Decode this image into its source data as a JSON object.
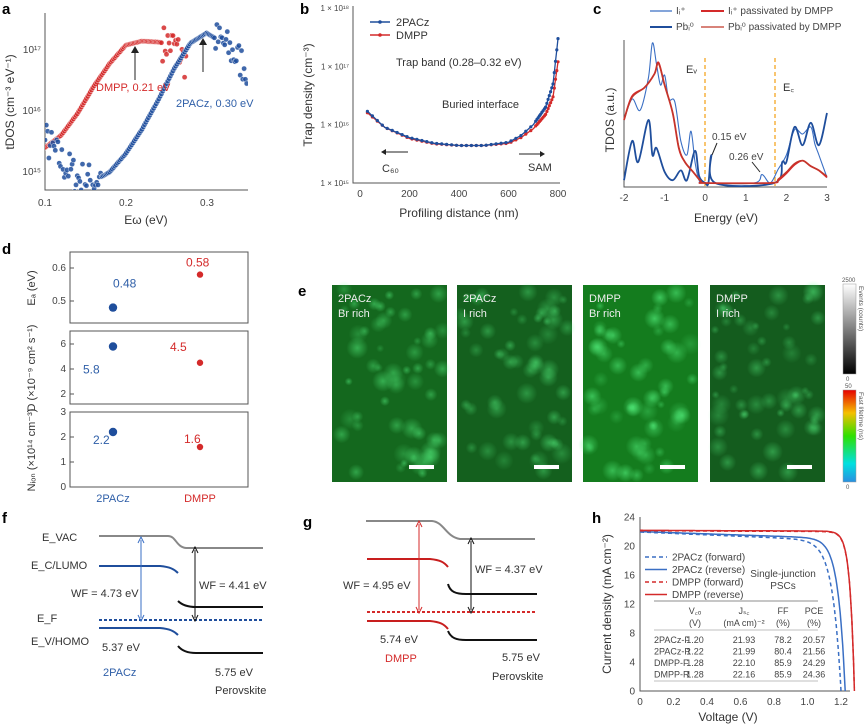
{
  "panel_letters": [
    "a",
    "b",
    "c",
    "d",
    "e",
    "f",
    "g",
    "h"
  ],
  "colors": {
    "blue": "#1f4e9c",
    "light_blue": "#3a6fc4",
    "red": "#d42a2a",
    "orange": "#f5a623",
    "gray": "#888888",
    "black": "#111111"
  },
  "chart_data": [
    {
      "panel": "a",
      "type": "scatter",
      "xlabel": "Eω (eV)",
      "ylabel": "tDOS (cm⁻³ eV⁻¹)",
      "xlim": [
        0.1,
        0.35
      ],
      "ylim": [
        500000000000000.0,
        4e+17
      ],
      "yscale": "log",
      "xticks": [
        "0.1",
        "0.2",
        "0.3"
      ],
      "yticks": [
        "10¹⁵",
        "10¹⁶",
        "10¹⁷"
      ],
      "series": [
        {
          "name": "DMPP",
          "color": "#d42a2a",
          "x": [
            0.1,
            0.12,
            0.14,
            0.16,
            0.18,
            0.2,
            0.22,
            0.24,
            0.26,
            0.275
          ],
          "y": [
            2500000000000000.0,
            4000000000000000.0,
            9000000000000000.0,
            2.5e+16,
            6e+16,
            1.2e+17,
            1.4e+17,
            1.35e+17,
            1.2e+17,
            6e+16
          ]
        },
        {
          "name": "2PACz",
          "color": "#1f4e9c",
          "x": [
            0.1,
            0.12,
            0.14,
            0.16,
            0.18,
            0.2,
            0.22,
            0.24,
            0.26,
            0.28,
            0.3,
            0.32,
            0.34,
            0.35
          ],
          "y": [
            3500000000000000.0,
            1500000000000000.0,
            800000000000000.0,
            700000000000000.0,
            1000000000000000.0,
            2000000000000000.0,
            5000000000000000.0,
            1.5e+16,
            5e+16,
            1.3e+17,
            1.9e+17,
            1.3e+17,
            7e+16,
            5e+16
          ]
        }
      ],
      "annotations": [
        {
          "text": "DMPP, 0.21 eV",
          "x": 0.21
        },
        {
          "text": "2PACz, 0.30 eV",
          "x": 0.3
        }
      ]
    },
    {
      "panel": "b",
      "type": "line",
      "xlabel": "Profiling distance (nm)",
      "ylabel": "Trap density (cm⁻³)",
      "xlim": [
        0,
        800
      ],
      "ylim": [
        1000000000000000.0,
        1e+18
      ],
      "yscale": "log",
      "xticks": [
        "0",
        "200",
        "400",
        "600",
        "800"
      ],
      "yticks": [
        "1 × 10¹⁵",
        "1 × 10¹⁶",
        "1 × 10¹⁷",
        "1 × 10¹⁸"
      ],
      "x": [
        30,
        100,
        200,
        300,
        400,
        500,
        600,
        650,
        700,
        750,
        780,
        800
      ],
      "series": [
        {
          "name": "2PACz",
          "color": "#1f4e9c",
          "values": [
            1.7e+16,
            9000000000000000.0,
            6000000000000000.0,
            4800000000000000.0,
            4400000000000000.0,
            4400000000000000.0,
            5000000000000000.0,
            6500000000000000.0,
            1e+16,
            2e+16,
            5e+16,
            3e+17
          ]
        },
        {
          "name": "DMPP",
          "color": "#d42a2a",
          "values": [
            1.6e+16,
            9000000000000000.0,
            5800000000000000.0,
            4700000000000000.0,
            4400000000000000.0,
            4400000000000000.0,
            4800000000000000.0,
            6000000000000000.0,
            8500000000000000.0,
            1.5e+16,
            3e+16,
            1.2e+17
          ]
        }
      ],
      "annotations": [
        "Trap band (0.28–0.32 eV)",
        "Buried interface",
        "C₆₀",
        "SAM"
      ]
    },
    {
      "panel": "c",
      "type": "line",
      "xlabel": "Energy (eV)",
      "ylabel": "TDOS (a.u.)",
      "xlim": [
        -2,
        3
      ],
      "xticks": [
        "-2",
        "-1",
        "0",
        "1",
        "2",
        "3"
      ],
      "markers": [
        {
          "label": "Eᵥ",
          "x": 0
        },
        {
          "label": "E꜀",
          "x": 1.72
        }
      ],
      "annotations": [
        "0.15 eV",
        "0.26 eV"
      ],
      "series": [
        {
          "name": "Iᵢ⁺",
          "color": "#3a6fc4",
          "pts": [
            [
              -2,
              0.45
            ],
            [
              -1.8,
              0.6
            ],
            [
              -1.6,
              0.52
            ],
            [
              -1.4,
              0.75
            ],
            [
              -1.3,
              1.0
            ],
            [
              -1.2,
              0.85
            ],
            [
              -1.1,
              0.7
            ],
            [
              -1.0,
              0.77
            ],
            [
              -0.9,
              0.6
            ],
            [
              -0.75,
              0.58
            ],
            [
              -0.6,
              0.3
            ],
            [
              -0.45,
              0.2
            ],
            [
              -0.35,
              0.37
            ],
            [
              -0.25,
              0.15
            ],
            [
              -0.15,
              0.02
            ],
            [
              0,
              0
            ],
            [
              1.2,
              0
            ],
            [
              1.4,
              0.06
            ],
            [
              1.6,
              0
            ],
            [
              1.8,
              0.1
            ],
            [
              2.0,
              0.2
            ],
            [
              2.2,
              0.38
            ],
            [
              2.4,
              0.35
            ],
            [
              2.6,
              0.4
            ],
            [
              2.7,
              0.28
            ],
            [
              2.8,
              0.2
            ],
            [
              3.0,
              0.04
            ]
          ]
        },
        {
          "name": "Pbᵢ⁰",
          "color": "#1f4e9c",
          "pts": [
            [
              -2,
              0.02
            ],
            [
              -1.8,
              0.3
            ],
            [
              -1.65,
              0.15
            ],
            [
              -1.4,
              0.45
            ],
            [
              -1.3,
              0.2
            ],
            [
              -1.2,
              0.25
            ],
            [
              -1.0,
              0.08
            ],
            [
              -0.8,
              0.02
            ],
            [
              -0.6,
              0.09
            ],
            [
              -0.45,
              0.02
            ],
            [
              -0.25,
              0.23
            ],
            [
              -0.15,
              0.05
            ],
            [
              0,
              0
            ],
            [
              0.08,
              0
            ],
            [
              0.15,
              0.2
            ],
            [
              0.25,
              0
            ],
            [
              1.7,
              0
            ],
            [
              1.9,
              0.15
            ],
            [
              2.0,
              0.15
            ],
            [
              2.2,
              0.4
            ],
            [
              2.4,
              0.27
            ],
            [
              2.6,
              0.43
            ],
            [
              2.8,
              0.27
            ],
            [
              3.0,
              0.5
            ]
          ]
        },
        {
          "name": "Iᵢ⁺ passivated by DMPP",
          "color": "#d42a2a",
          "pts": [
            [
              -2,
              0.45
            ],
            [
              -1.8,
              0.62
            ],
            [
              -1.5,
              0.68
            ],
            [
              -1.25,
              0.78
            ],
            [
              -1.15,
              0.86
            ],
            [
              -1.0,
              0.7
            ],
            [
              -0.8,
              0.5
            ],
            [
              -0.65,
              0.25
            ],
            [
              -0.5,
              0.15
            ],
            [
              -0.3,
              0.08
            ],
            [
              -0.1,
              0.01
            ],
            [
              0,
              0
            ],
            [
              1.6,
              0
            ],
            [
              1.8,
              0.02
            ],
            [
              2.0,
              0.07
            ],
            [
              2.2,
              0.13
            ],
            [
              2.4,
              0.16
            ],
            [
              2.6,
              0.12
            ],
            [
              2.8,
              0.09
            ],
            [
              3.0,
              0.04
            ]
          ]
        },
        {
          "name": "Pbᵢ⁰ passivated by DMPP",
          "color": "#c0392b",
          "pts": [
            [
              -2,
              0.45
            ],
            [
              -1.8,
              0.61
            ],
            [
              -1.5,
              0.68
            ],
            [
              -1.25,
              0.78
            ],
            [
              -1.15,
              0.85
            ],
            [
              -1.0,
              0.7
            ],
            [
              -0.8,
              0.5
            ],
            [
              -0.65,
              0.26
            ],
            [
              -0.5,
              0.15
            ],
            [
              -0.3,
              0.08
            ],
            [
              -0.1,
              0.01
            ],
            [
              0,
              0
            ],
            [
              1.6,
              0
            ],
            [
              1.8,
              0.03
            ],
            [
              2.0,
              0.08
            ],
            [
              2.2,
              0.14
            ],
            [
              2.4,
              0.16
            ],
            [
              2.6,
              0.12
            ],
            [
              2.8,
              0.09
            ],
            [
              3.0,
              0.05
            ]
          ]
        }
      ]
    },
    {
      "panel": "d",
      "type": "scatter",
      "categories": [
        "2PACz",
        "DMPP"
      ],
      "subplots": [
        {
          "ylabel": "Eₐ (eV)",
          "ylim": [
            0.42,
            0.65
          ],
          "yticks": [
            "0.5",
            "0.6"
          ],
          "values": [
            0.48,
            0.58
          ],
          "labels": [
            "0.48",
            "0.58"
          ]
        },
        {
          "ylabel": "D (×10⁻⁹ cm² s⁻¹)",
          "ylim": [
            1,
            7
          ],
          "yticks": [
            "2",
            "4",
            "6"
          ],
          "values": [
            5.8,
            4.5
          ],
          "labels": [
            "5.8",
            "4.5"
          ]
        },
        {
          "ylabel": "Nᵢₒₙ (×10¹⁴ cm⁻³)",
          "ylim": [
            0,
            3
          ],
          "yticks": [
            "0",
            "1",
            "2",
            "3"
          ],
          "values": [
            2.2,
            1.6
          ],
          "labels": [
            "2.2",
            "1.6"
          ]
        }
      ]
    },
    {
      "panel": "h",
      "type": "line",
      "xlabel": "Voltage (V)",
      "ylabel": "Current density (mA cm⁻²)",
      "xlim": [
        0,
        1.3
      ],
      "ylim": [
        0,
        24
      ],
      "xticks": [
        "0",
        "0.2",
        "0.4",
        "0.6",
        "0.8",
        "1.0",
        "1.2"
      ],
      "yticks": [
        "0",
        "4",
        "8",
        "12",
        "16",
        "20",
        "24"
      ],
      "legend": [
        "2PACz (forward)",
        "2PACz (reverse)",
        "DMPP (forward)",
        "DMPP (reverse)"
      ],
      "legend_placement": "left",
      "inset_title": [
        "Single-junction",
        "PSCs"
      ],
      "table": {
        "headers": [
          [
            "",
            "V꜀ₒ",
            "Jₛ꜀",
            "FF",
            "PCE"
          ],
          [
            "",
            "(V)",
            "(mA cm)⁻²",
            "(%)",
            "(%)"
          ]
        ],
        "rows": [
          [
            "2PACz-F",
            "1.20",
            "21.93",
            "78.2",
            "20.57"
          ],
          [
            "2PACz-R",
            "1.22",
            "21.99",
            "80.4",
            "21.56"
          ],
          [
            "DMPP-F",
            "1.28",
            "22.10",
            "85.9",
            "24.29"
          ],
          [
            "DMPP-R",
            "1.28",
            "22.16",
            "85.9",
            "24.36"
          ]
        ]
      }
    }
  ],
  "panel_e": {
    "images": [
      {
        "line1": "2PACz",
        "line2": "Br rich",
        "brightness": 0.55
      },
      {
        "line1": "2PACz",
        "line2": "I rich",
        "brightness": 0.45
      },
      {
        "line1": "DMPP",
        "line2": "Br rich",
        "brightness": 0.8
      },
      {
        "line1": "DMPP",
        "line2": "I rich",
        "brightness": 0.4
      }
    ],
    "colorbar_counts": {
      "label": "Events (counts)",
      "max": "2500",
      "min": "0"
    },
    "colorbar_lifetime": {
      "label": "Fast lifetime (ns)",
      "max": "50",
      "min": "0"
    }
  },
  "panel_f": {
    "evac": "E_VAC",
    "ec": "E_C/LUMO",
    "ef": "E_F",
    "ev": "E_V/HOMO",
    "wf_left": "WF = 4.73 eV",
    "wf_right": "WF = 4.41 eV",
    "homo": "5.37 eV",
    "material": "2PACz",
    "vb": "5.75 eV",
    "perovskite": "Perovskite"
  },
  "panel_g": {
    "wf_left": "WF = 4.95 eV",
    "wf_right": "WF = 4.37 eV",
    "homo": "5.74 eV",
    "material": "DMPP",
    "vb": "5.75 eV",
    "perovskite": "Perovskite"
  }
}
